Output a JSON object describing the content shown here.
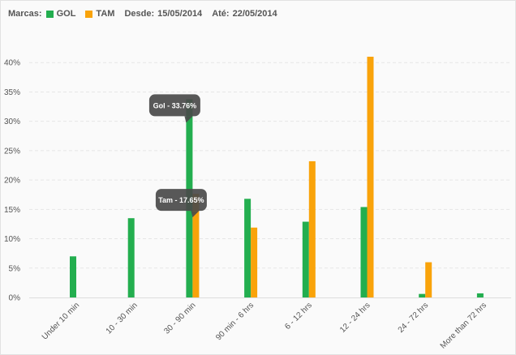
{
  "header": {
    "brands_label": "Marcas:",
    "from_label": "Desde:",
    "from_date": "15/05/2014",
    "to_label": "Até:",
    "to_date": "22/05/2014"
  },
  "colors": {
    "gol": "#23ae4f",
    "tam": "#f9a30a",
    "tooltip": "#4a4a4a"
  },
  "chart_data": {
    "type": "bar",
    "categories": [
      "Under 10 min",
      "10 - 30 min",
      "30 - 90 min",
      "90 min - 6 hrs",
      "6 - 12 hrs",
      "12 - 24 hrs",
      "24 - 72 hrs",
      "More than 72 hrs"
    ],
    "series": [
      {
        "name": "GOL",
        "values": [
          7.0,
          13.5,
          33.76,
          16.8,
          12.9,
          15.4,
          0.6,
          0.7
        ]
      },
      {
        "name": "TAM",
        "values": [
          0,
          0,
          17.65,
          11.9,
          23.2,
          41.0,
          6.0,
          0
        ]
      }
    ],
    "ylim": [
      0,
      45
    ],
    "yticks": [
      0,
      5,
      10,
      15,
      20,
      25,
      30,
      35,
      40
    ],
    "ytick_suffix": "%",
    "grid": true,
    "legend": "top-left",
    "tooltips": [
      {
        "text": "Gol - 33.76%",
        "series": 0,
        "category": 2
      },
      {
        "text": "Tam - 17.65%",
        "series": 1,
        "category": 2
      }
    ]
  }
}
